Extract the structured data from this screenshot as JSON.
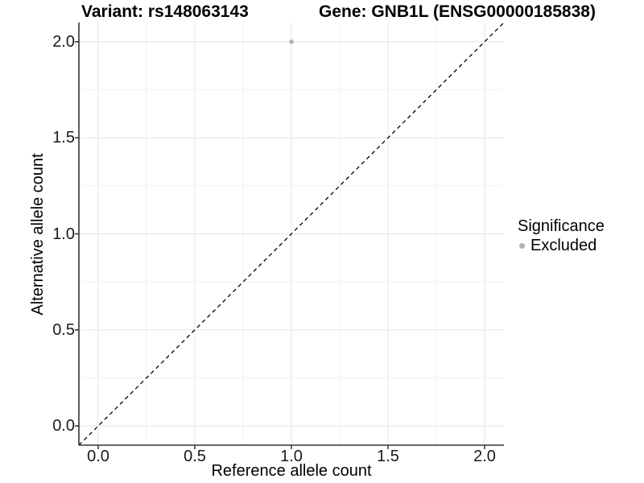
{
  "header": {
    "variant_title": "Variant: rs148063143",
    "gene_title": "Gene: GNB1L (ENSG00000185838)"
  },
  "axes": {
    "x_label": "Reference allele count",
    "y_label": "Alternative allele count"
  },
  "legend": {
    "title": "Significance",
    "items": [
      {
        "label": "Excluded",
        "color": "#b2b2b2"
      }
    ]
  },
  "colors": {
    "background": "#ffffff",
    "axis_line": "#333333",
    "tick_mark": "#333333",
    "major_grid": "#e8e8e8",
    "minor_grid": "#f2f2f2",
    "reference_line": "#000000",
    "point": "#b2b2b2",
    "text": "#000000"
  },
  "chart_data": {
    "type": "scatter",
    "title": "Variant: rs148063143   Gene: GNB1L (ENSG00000185838)",
    "xlabel": "Reference allele count",
    "ylabel": "Alternative allele count",
    "xlim": [
      -0.1,
      2.1
    ],
    "ylim": [
      -0.1,
      2.1
    ],
    "x_ticks": [
      0,
      0.5,
      1,
      1.5,
      2
    ],
    "y_ticks": [
      0,
      0.5,
      1,
      1.5,
      2
    ],
    "x_tick_labels": [
      "0.0",
      "0.5",
      "1.0",
      "1.5",
      "2.0"
    ],
    "y_tick_labels": [
      "0.0",
      "0.5",
      "1.0",
      "1.5",
      "2.0"
    ],
    "grid": "major+minor",
    "minor_grid_step": 0.25,
    "legend_position": "right",
    "series": [
      {
        "name": "Excluded",
        "color": "#b2b2b2",
        "points": [
          {
            "x": 1.0,
            "y": 2.0
          }
        ]
      }
    ],
    "reference_line": {
      "slope": 1,
      "intercept": 0,
      "style": "dashed",
      "color": "#000000"
    }
  }
}
